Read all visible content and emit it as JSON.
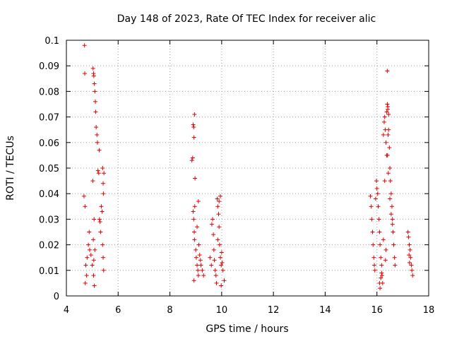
{
  "chart_data": {
    "type": "scatter",
    "title": "Day 148 of 2023, Rate Of TEC Index for receiver alic",
    "xlabel": "GPS time / hours",
    "ylabel": "ROTI / TECUs",
    "xlim": [
      4,
      18
    ],
    "ylim": [
      0,
      0.1
    ],
    "xticks": [
      "4",
      "6",
      "8",
      "10",
      "12",
      "14",
      "16",
      "18"
    ],
    "yticks": [
      "0",
      "0.01",
      "0.02",
      "0.03",
      "0.04",
      "0.05",
      "0.06",
      "0.07",
      "0.08",
      "0.09",
      "0.1"
    ],
    "grid": true,
    "marker": "plus",
    "color": "#e00000",
    "series": [
      {
        "name": "ROTI",
        "x": [
          4.7,
          4.71,
          4.72,
          4.68,
          4.75,
          4.8,
          4.78,
          4.73,
          4.85,
          4.9,
          4.88,
          4.95,
          5.0,
          5.03,
          5.05,
          5.06,
          5.08,
          5.1,
          5.12,
          5.13,
          5.15,
          5.18,
          5.2,
          5.22,
          5.25,
          5.28,
          5.3,
          5.32,
          5.35,
          5.38,
          5.4,
          5.42,
          5.44,
          5.1,
          5.02,
          5.07,
          5.04,
          5.06,
          5.05,
          5.08,
          5.27,
          5.4,
          5.45,
          5.42,
          5.43,
          8.85,
          8.88,
          8.9,
          8.92,
          8.93,
          8.95,
          8.97,
          9.0,
          9.02,
          9.05,
          9.08,
          9.1,
          9.12,
          9.15,
          9.18,
          9.2,
          9.25,
          9.3,
          8.92,
          8.94,
          8.93,
          8.95,
          8.96,
          8.9,
          9.05,
          9.1,
          9.55,
          9.6,
          9.62,
          9.65,
          9.68,
          9.7,
          9.72,
          9.75,
          9.78,
          9.8,
          9.83,
          9.85,
          9.88,
          9.9,
          9.92,
          9.95,
          9.98,
          10.0,
          10.05,
          10.1,
          9.95,
          9.9,
          9.98,
          10.02,
          9.85,
          15.75,
          15.78,
          15.8,
          15.83,
          15.85,
          15.88,
          15.9,
          15.92,
          15.95,
          15.98,
          16.0,
          16.03,
          16.05,
          16.08,
          16.1,
          16.12,
          16.15,
          16.18,
          16.2,
          16.22,
          16.25,
          16.28,
          16.3,
          16.32,
          16.35,
          16.38,
          16.4,
          16.42,
          16.45,
          16.48,
          16.5,
          16.52,
          16.55,
          16.58,
          16.6,
          16.62,
          16.65,
          16.68,
          16.7,
          16.4,
          16.42,
          16.38,
          16.45,
          16.43,
          16.41,
          16.44,
          16.12,
          16.1,
          16.15,
          16.18,
          16.3,
          16.5,
          16.55,
          16.6,
          16.35,
          16.25,
          16.33,
          17.2,
          17.22,
          17.25,
          17.28,
          17.3,
          17.33,
          17.35,
          17.38,
          17.24,
          17.26
        ],
        "y": [
          0.098,
          0.087,
          0.035,
          0.039,
          0.012,
          0.015,
          0.008,
          0.005,
          0.02,
          0.018,
          0.025,
          0.016,
          0.012,
          0.089,
          0.087,
          0.086,
          0.083,
          0.08,
          0.076,
          0.072,
          0.066,
          0.063,
          0.06,
          0.049,
          0.048,
          0.03,
          0.029,
          0.025,
          0.035,
          0.033,
          0.02,
          0.015,
          0.01,
          0.018,
          0.045,
          0.03,
          0.022,
          0.014,
          0.008,
          0.004,
          0.057,
          0.05,
          0.048,
          0.044,
          0.04,
          0.053,
          0.054,
          0.067,
          0.066,
          0.062,
          0.071,
          0.046,
          0.018,
          0.015,
          0.012,
          0.01,
          0.008,
          0.02,
          0.016,
          0.014,
          0.012,
          0.01,
          0.008,
          0.03,
          0.025,
          0.006,
          0.022,
          0.035,
          0.033,
          0.027,
          0.037,
          0.015,
          0.012,
          0.028,
          0.03,
          0.024,
          0.018,
          0.014,
          0.01,
          0.008,
          0.005,
          0.038,
          0.035,
          0.032,
          0.027,
          0.02,
          0.015,
          0.012,
          0.017,
          0.01,
          0.006,
          0.039,
          0.037,
          0.004,
          0.013,
          0.022,
          0.039,
          0.035,
          0.03,
          0.025,
          0.02,
          0.015,
          0.012,
          0.01,
          0.038,
          0.045,
          0.042,
          0.04,
          0.035,
          0.03,
          0.025,
          0.02,
          0.015,
          0.012,
          0.008,
          0.005,
          0.063,
          0.068,
          0.07,
          0.065,
          0.06,
          0.055,
          0.075,
          0.073,
          0.071,
          0.058,
          0.05,
          0.045,
          0.04,
          0.035,
          0.03,
          0.025,
          0.02,
          0.015,
          0.012,
          0.088,
          0.074,
          0.072,
          0.065,
          0.063,
          0.055,
          0.048,
          0.003,
          0.005,
          0.007,
          0.009,
          0.045,
          0.038,
          0.032,
          0.028,
          0.018,
          0.022,
          0.014,
          0.025,
          0.023,
          0.02,
          0.018,
          0.015,
          0.012,
          0.01,
          0.008,
          0.016,
          0.013
        ]
      }
    ]
  }
}
